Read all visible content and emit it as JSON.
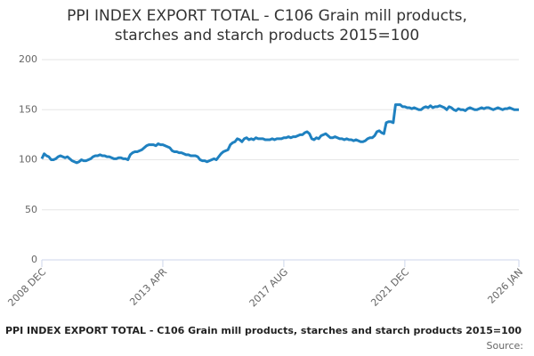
{
  "chart_data": {
    "type": "line",
    "title": [
      "PPI INDEX EXPORT TOTAL - C106 Grain mill products,",
      "starches and starch products 2015=100"
    ],
    "caption": "PPI INDEX EXPORT TOTAL - C106 Grain mill products, starches and starch products 2015=100",
    "source": "Source:",
    "categories": [
      "2008 DEC",
      null,
      null,
      null,
      null,
      null,
      null,
      null,
      null,
      null,
      null,
      null,
      null,
      null,
      null,
      null,
      null,
      null,
      null,
      null,
      null,
      null,
      null,
      null,
      null,
      null,
      null,
      null,
      null,
      null,
      null,
      null,
      null,
      null,
      null,
      null,
      null,
      null,
      null,
      null,
      null,
      null,
      null,
      null,
      null,
      null,
      null,
      null,
      null,
      null,
      null,
      null,
      "2013 APR",
      null,
      null,
      null,
      null,
      null,
      null,
      null,
      null,
      null,
      null,
      null,
      null,
      null,
      null,
      null,
      null,
      null,
      null,
      null,
      null,
      null,
      null,
      null,
      null,
      null,
      null,
      null,
      null,
      null,
      null,
      null,
      null,
      null,
      null,
      null,
      null,
      null,
      null,
      null,
      null,
      null,
      null,
      null,
      null,
      null,
      null,
      null,
      null,
      null,
      null,
      null,
      "2017 AUG",
      null,
      null,
      null,
      null,
      null,
      null,
      null,
      null,
      null,
      null,
      null,
      null,
      null,
      null,
      null,
      null,
      null,
      null,
      null,
      null,
      null,
      null,
      null,
      null,
      null,
      null,
      null,
      null,
      null,
      null,
      null,
      null,
      null,
      null,
      null,
      null,
      null,
      null,
      null,
      null,
      null,
      null,
      null,
      null,
      null,
      null,
      null,
      null,
      null,
      null,
      null,
      "2021 DEC",
      null,
      null,
      null,
      null,
      null,
      null,
      null,
      null,
      null,
      null,
      null,
      null,
      null,
      null,
      null,
      null,
      null,
      null,
      null,
      null,
      null,
      null,
      null,
      null,
      null,
      null,
      null,
      null,
      null,
      null,
      null,
      null,
      null,
      null,
      null,
      null,
      null,
      null,
      null,
      null,
      null,
      null,
      null,
      null,
      null,
      null,
      null,
      null,
      "2026 JAN"
    ],
    "series": [
      {
        "name": "PPI INDEX EXPORT TOTAL - C106 Grain mill products, starches and starch products 2015=100",
        "color": "#1f81c0",
        "values": [
          101,
          106,
          104,
          103,
          100,
          100,
          101,
          103,
          104,
          103,
          102,
          103,
          101,
          99,
          98,
          97,
          98,
          100,
          99,
          99,
          100,
          101,
          103,
          104,
          104,
          105,
          104,
          104,
          103,
          103,
          102,
          101,
          101,
          102,
          102,
          101,
          101,
          100,
          105,
          107,
          108,
          108,
          109,
          110,
          112,
          114,
          115,
          115,
          115,
          114,
          116,
          115,
          115,
          114,
          113,
          112,
          109,
          108,
          108,
          107,
          107,
          106,
          105,
          105,
          104,
          104,
          104,
          103,
          100,
          99,
          99,
          98,
          99,
          100,
          101,
          100,
          103,
          106,
          108,
          109,
          110,
          115,
          117,
          118,
          121,
          120,
          118,
          121,
          122,
          120,
          121,
          120,
          122,
          121,
          121,
          121,
          120,
          120,
          120,
          121,
          120,
          121,
          121,
          121,
          122,
          122,
          123,
          122,
          123,
          123,
          124,
          125,
          125,
          127,
          128,
          126,
          121,
          120,
          122,
          121,
          124,
          125,
          126,
          124,
          122,
          122,
          123,
          122,
          121,
          121,
          120,
          121,
          120,
          120,
          119,
          120,
          119,
          118,
          118,
          119,
          121,
          122,
          122,
          124,
          128,
          129,
          127,
          126,
          137,
          138,
          138,
          137,
          155,
          155,
          155,
          153,
          153,
          152,
          152,
          151,
          152,
          151,
          150,
          150,
          152,
          153,
          152,
          154,
          152,
          153,
          153,
          154,
          153,
          152,
          150,
          153,
          152,
          150,
          149,
          151,
          150,
          150,
          149,
          151,
          152,
          151,
          150,
          150,
          151,
          152,
          151,
          152,
          152,
          151,
          150,
          151,
          152,
          151,
          150,
          151,
          151,
          152,
          151,
          150,
          150,
          150
        ]
      }
    ],
    "ylim": [
      0,
      200
    ],
    "yticks": [
      0,
      50,
      100,
      150,
      200
    ],
    "grid": true
  }
}
